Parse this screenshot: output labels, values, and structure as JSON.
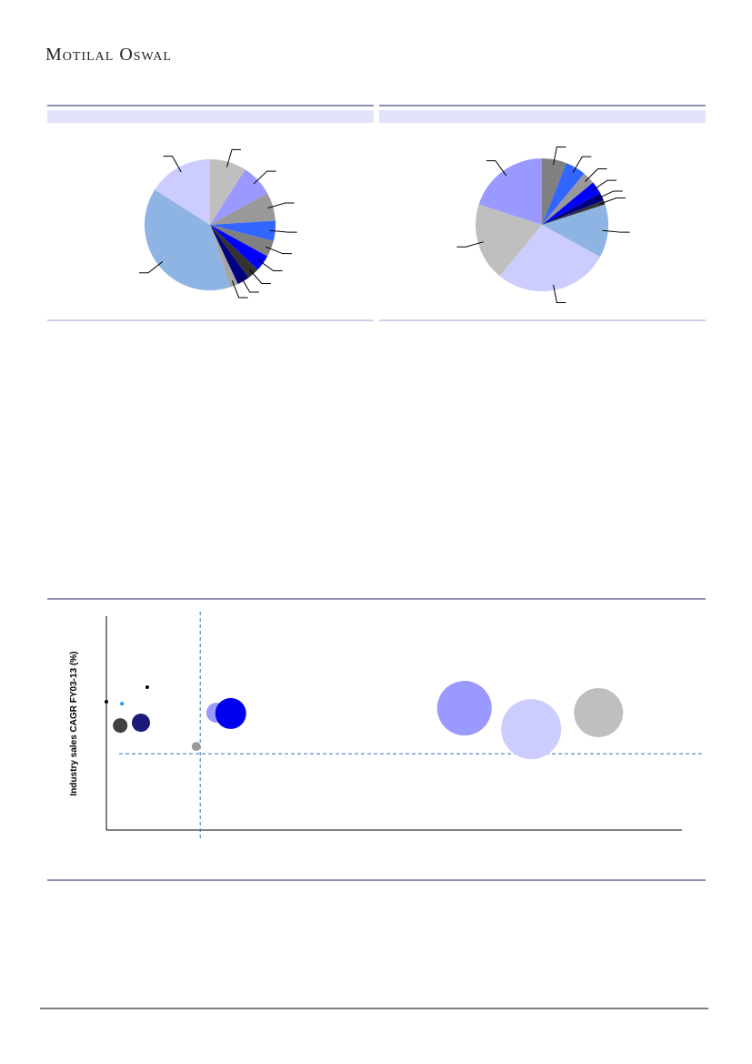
{
  "header": {
    "brand": "Motilal Oswal"
  },
  "chart_data": [
    {
      "type": "pie",
      "values": [
        9,
        8,
        7,
        5,
        4,
        4,
        3,
        3,
        2,
        39,
        16
      ],
      "colors": [
        "#bfbfbf",
        "#9999ff",
        "#999999",
        "#3366ff",
        "#808080",
        "#0000ff",
        "#333333",
        "#000080",
        "#a6a6a6",
        "#8db4e2",
        "#ccccff"
      ]
    },
    {
      "type": "pie",
      "values": [
        6,
        5,
        3,
        3,
        2,
        1,
        13,
        28,
        19,
        20
      ],
      "colors": [
        "#808080",
        "#3366ff",
        "#999999",
        "#0000ff",
        "#000080",
        "#333333",
        "#8db4e2",
        "#ccccff",
        "#bfbfbf",
        "#9999ff"
      ]
    },
    {
      "type": "bubble",
      "y_label": "Industry sales CAGR FY03-13 (%)",
      "xlim": [
        0,
        100
      ],
      "ylim": [
        0,
        100
      ],
      "ref_x": 16.3,
      "ref_y": 35.7,
      "x": [
        0,
        2.7,
        7.1,
        2.4,
        6.0,
        15.6,
        19.1,
        21.6,
        62.2,
        73.8,
        85.5
      ],
      "values": [
        60.0,
        59.1,
        66.8,
        48.9,
        50.2,
        39.1,
        54.9,
        54.5,
        57.0,
        47.2,
        54.9
      ],
      "sizes": [
        2,
        2,
        2,
        8,
        10,
        5,
        11,
        17,
        30,
        33,
        27
      ],
      "colors": [
        "#000000",
        "#1e90ff",
        "#000000",
        "#404040",
        "#1a1a7a",
        "#999999",
        "#9999ff",
        "#0000ee",
        "#9999ff",
        "#ccccff",
        "#bfbfbf"
      ]
    }
  ]
}
